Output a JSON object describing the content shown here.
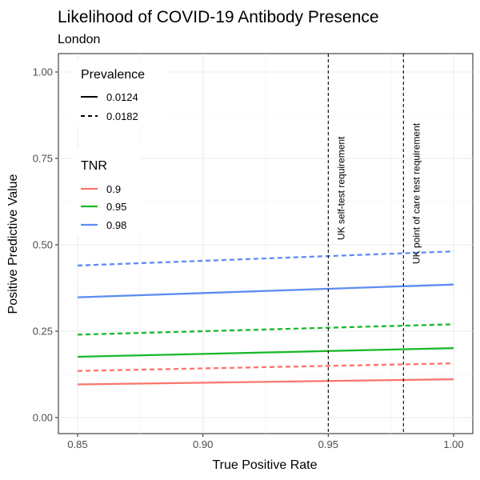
{
  "chart_data": {
    "type": "line",
    "title": "Likelihood of COVID-19 Antibody Presence",
    "subtitle": "London",
    "xlabel": "True Positive Rate",
    "ylabel": "Positive Predictive Value",
    "xlim": [
      0.85,
      1.0
    ],
    "ylim": [
      0.0,
      1.0
    ],
    "x_ticks": [
      0.85,
      0.9,
      0.95,
      1.0
    ],
    "x_tick_labels": [
      "0.85",
      "0.90",
      "0.95",
      "1.00"
    ],
    "y_ticks": [
      0.0,
      0.25,
      0.5,
      0.75,
      1.0
    ],
    "y_tick_labels": [
      "0.00",
      "0.25",
      "0.50",
      "0.75",
      "1.00"
    ],
    "grid": true,
    "legend_position": "top-left",
    "legends": {
      "prevalence": {
        "title": "Prevalence",
        "entries": [
          {
            "label": "0.0124",
            "linetype": "solid"
          },
          {
            "label": "0.0182",
            "linetype": "dashed"
          }
        ]
      },
      "tnr": {
        "title": "TNR",
        "entries": [
          {
            "label": "0.9",
            "color": "#F8766D"
          },
          {
            "label": "0.95",
            "color": "#1BB82A"
          },
          {
            "label": "0.98",
            "color": "#5B8CF2"
          }
        ]
      }
    },
    "series": [
      {
        "tnr": "0.9",
        "prevalence": "0.0124",
        "color": "#F8766D",
        "linetype": "solid",
        "x": [
          0.85,
          1.0
        ],
        "y": [
          0.096,
          0.111
        ]
      },
      {
        "tnr": "0.9",
        "prevalence": "0.0182",
        "color": "#F8766D",
        "linetype": "dashed",
        "x": [
          0.85,
          1.0
        ],
        "y": [
          0.135,
          0.157
        ]
      },
      {
        "tnr": "0.95",
        "prevalence": "0.0124",
        "color": "#1BB82A",
        "linetype": "solid",
        "x": [
          0.85,
          1.0
        ],
        "y": [
          0.176,
          0.201
        ]
      },
      {
        "tnr": "0.95",
        "prevalence": "0.0182",
        "color": "#1BB82A",
        "linetype": "dashed",
        "x": [
          0.85,
          1.0
        ],
        "y": [
          0.24,
          0.27
        ]
      },
      {
        "tnr": "0.98",
        "prevalence": "0.0124",
        "color": "#5B8CF2",
        "linetype": "solid",
        "x": [
          0.85,
          1.0
        ],
        "y": [
          0.348,
          0.385
        ]
      },
      {
        "tnr": "0.98",
        "prevalence": "0.0182",
        "color": "#5B8CF2",
        "linetype": "dashed",
        "x": [
          0.85,
          1.0
        ],
        "y": [
          0.44,
          0.481
        ]
      }
    ],
    "vlines": [
      {
        "x": 0.95,
        "label": "UK self-test requirement"
      },
      {
        "x": 0.98,
        "label": "UK point of care test requirement"
      }
    ]
  }
}
